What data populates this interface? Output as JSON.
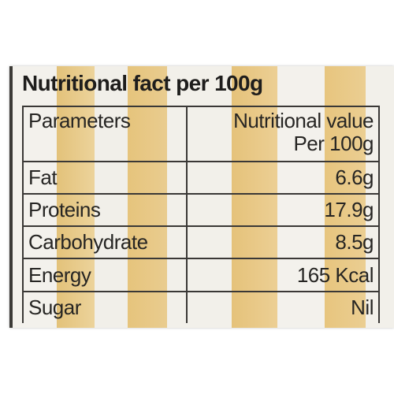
{
  "heading": "Nutritional fact per 100g",
  "table": {
    "header": {
      "param": "Parameters",
      "value_line1": "Nutritional value",
      "value_line2": "Per 100g"
    },
    "rows": [
      {
        "param": "Fat",
        "value": "6.6g"
      },
      {
        "param": "Proteins",
        "value": "17.9g"
      },
      {
        "param": "Carbohydrate",
        "value": "8.5g"
      },
      {
        "param": "Energy",
        "value": "165 Kcal"
      },
      {
        "param": "Sugar",
        "value": "Nil"
      }
    ]
  }
}
